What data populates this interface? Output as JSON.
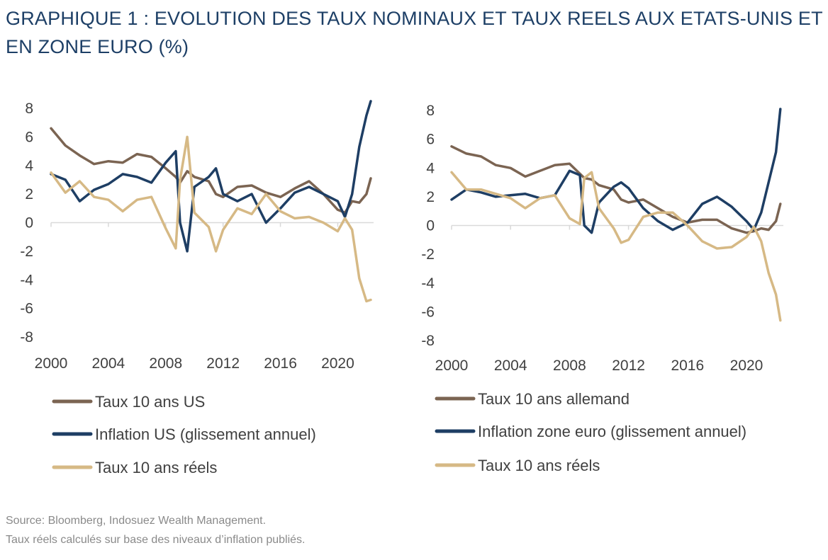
{
  "title": "GRAPHIQUE 1 : EVOLUTION DES TAUX NOMINAUX ET TAUX REELS AUX ETATS-UNIS ET EN ZONE EURO (%)",
  "source": {
    "line1": "Source: Bloomberg, Indosuez Wealth Management.",
    "line2": "Taux réels calculés sur base des niveaux d’inflation publiés."
  },
  "colors": {
    "nominal": "#7b6452",
    "inflation": "#1e3e64",
    "real": "#d6b985",
    "axis": "#d9d9d9"
  },
  "chart_data": [
    {
      "type": "line",
      "xlim": [
        2000,
        2022.5
      ],
      "ylim": [
        -8,
        8
      ],
      "x_ticks": [
        "2000",
        "2004",
        "2008",
        "2012",
        "2016",
        "2020"
      ],
      "y_ticks": [
        "8",
        "6",
        "4",
        "2",
        "0",
        "-2",
        "-4",
        "-6",
        "-8"
      ],
      "legend_position": "bottom",
      "x": [
        2000,
        2001,
        2002,
        2003,
        2004,
        2005,
        2006,
        2007,
        2008,
        2008.7,
        2009,
        2009.5,
        2010,
        2011,
        2011.5,
        2012,
        2013,
        2014,
        2015,
        2016,
        2017,
        2018,
        2019,
        2020,
        2020.5,
        2021,
        2021.5,
        2022,
        2022.3
      ],
      "series": [
        {
          "name": "Taux 10 ans US",
          "color": "#7b6452",
          "values": [
            6.6,
            5.4,
            4.7,
            4.1,
            4.3,
            4.2,
            4.8,
            4.6,
            3.8,
            3.2,
            2.8,
            3.6,
            3.2,
            2.9,
            2.0,
            1.8,
            2.5,
            2.6,
            2.1,
            1.8,
            2.4,
            2.9,
            2.0,
            0.9,
            0.7,
            1.5,
            1.4,
            2.0,
            3.1
          ]
        },
        {
          "name": "Inflation US (glissement annuel)",
          "color": "#1e3e64",
          "values": [
            3.4,
            3.0,
            1.5,
            2.3,
            2.7,
            3.4,
            3.2,
            2.8,
            4.2,
            5.0,
            0.0,
            -2.0,
            2.5,
            3.2,
            3.8,
            2.0,
            1.5,
            2.0,
            0.0,
            1.0,
            2.1,
            2.5,
            2.0,
            1.5,
            0.4,
            2.0,
            5.3,
            7.5,
            8.5
          ]
        },
        {
          "name": "Taux 10 ans réels",
          "color": "#d6b985",
          "values": [
            3.5,
            2.1,
            2.9,
            1.8,
            1.6,
            0.8,
            1.6,
            1.8,
            -0.4,
            -1.8,
            3.0,
            6.0,
            0.7,
            -0.3,
            -2.0,
            -0.5,
            1.0,
            0.6,
            2.0,
            0.8,
            0.3,
            0.4,
            0.0,
            -0.6,
            0.3,
            -0.5,
            -3.9,
            -5.5,
            -5.4
          ]
        }
      ]
    },
    {
      "type": "line",
      "xlim": [
        2000,
        2022.5
      ],
      "ylim": [
        -8,
        8
      ],
      "x_ticks": [
        "2000",
        "2004",
        "2008",
        "2012",
        "2016",
        "2020"
      ],
      "y_ticks": [
        "8",
        "6",
        "4",
        "2",
        "0",
        "-2",
        "-4",
        "-6",
        "-8"
      ],
      "legend_position": "bottom",
      "x": [
        2000,
        2001,
        2002,
        2003,
        2004,
        2005,
        2006,
        2007,
        2008,
        2008.7,
        2009,
        2009.5,
        2010,
        2011,
        2011.5,
        2012,
        2013,
        2014,
        2015,
        2016,
        2017,
        2018,
        2019,
        2020,
        2020.5,
        2021,
        2021.5,
        2022,
        2022.3
      ],
      "series": [
        {
          "name": "Taux 10 ans allemand",
          "color": "#7b6452",
          "values": [
            5.5,
            5.0,
            4.8,
            4.2,
            4.0,
            3.4,
            3.8,
            4.2,
            4.3,
            3.6,
            3.3,
            3.2,
            2.8,
            2.5,
            1.8,
            1.6,
            1.8,
            1.2,
            0.6,
            0.2,
            0.4,
            0.4,
            -0.2,
            -0.5,
            -0.4,
            -0.2,
            -0.3,
            0.3,
            1.5
          ]
        },
        {
          "name": "Inflation zone euro (glissement annuel)",
          "color": "#1e3e64",
          "values": [
            1.8,
            2.5,
            2.3,
            2.0,
            2.1,
            2.2,
            1.9,
            2.1,
            3.8,
            3.5,
            0.0,
            -0.5,
            1.6,
            2.7,
            3.0,
            2.6,
            1.2,
            0.3,
            -0.3,
            0.2,
            1.5,
            2.0,
            1.3,
            0.3,
            -0.3,
            0.9,
            3.0,
            5.1,
            8.1
          ]
        },
        {
          "name": "Taux 10 ans réels",
          "color": "#d6b985",
          "values": [
            3.7,
            2.5,
            2.5,
            2.2,
            1.9,
            1.2,
            1.9,
            2.1,
            0.5,
            0.1,
            3.3,
            3.7,
            1.2,
            -0.2,
            -1.2,
            -1.0,
            0.6,
            0.9,
            0.9,
            0.0,
            -1.1,
            -1.6,
            -1.5,
            -0.8,
            -0.1,
            -1.1,
            -3.3,
            -4.8,
            -6.6
          ]
        }
      ]
    }
  ]
}
